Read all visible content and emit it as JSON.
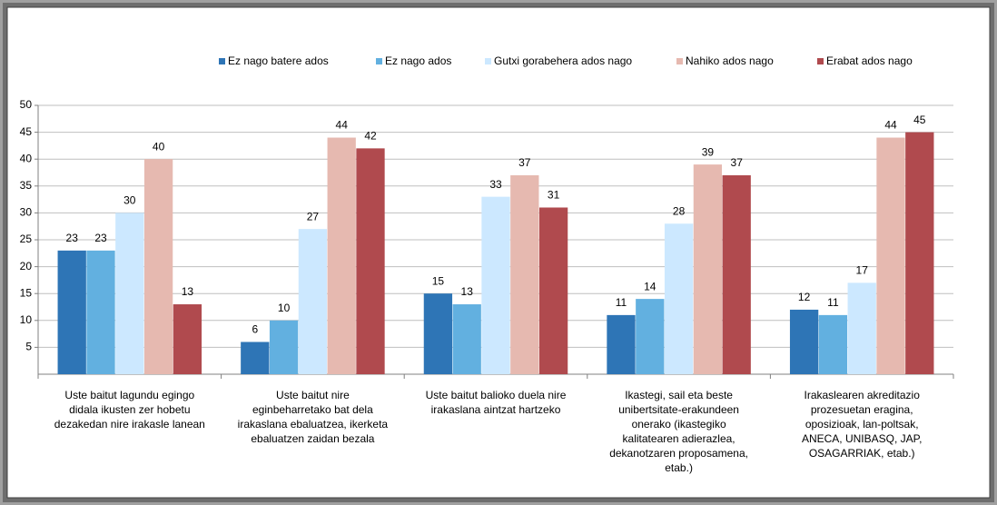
{
  "chart_data": {
    "type": "bar",
    "categories": [
      [
        "Uste baitut lagundu egingo",
        "didala ikusten zer hobetu",
        "dezakedan nire irakasle lanean"
      ],
      [
        "Uste baitut nire",
        "eginbeharretako bat dela",
        "irakaslana ebaluatzea, ikerketa",
        "ebaluatzen zaidan bezala"
      ],
      [
        "Uste baitut balioko duela nire",
        "irakaslana aintzat hartzeko"
      ],
      [
        "Ikastegi, sail eta beste",
        "unibertsitate-erakundeen",
        "onerako (ikastegiko",
        "kalitatearen adierazlea,",
        "dekanotzaren proposamena,",
        "etab.)"
      ],
      [
        "Irakaslearen akreditazio",
        "prozesuetan eragina,",
        "oposizioak, lan-poltsak,",
        "ANECA, UNIBASQ, JAP,",
        "OSAGARRIAK, etab.)"
      ]
    ],
    "series": [
      {
        "name": "Ez nago batere ados",
        "color": "#2e75b6",
        "values": [
          23,
          6,
          15,
          11,
          12
        ]
      },
      {
        "name": "Ez nago ados",
        "color": "#62b0e0",
        "values": [
          23,
          10,
          13,
          14,
          11
        ]
      },
      {
        "name": "Gutxi gorabehera ados nago",
        "color": "#cce8ff",
        "values": [
          30,
          27,
          33,
          28,
          17
        ]
      },
      {
        "name": "Nahiko ados nago",
        "color": "#e6b9b0",
        "values": [
          40,
          44,
          37,
          39,
          44
        ]
      },
      {
        "name": "Erabat ados nago",
        "color": "#b04a4e",
        "values": [
          13,
          42,
          31,
          37,
          45
        ]
      }
    ],
    "ylim": [
      0,
      50
    ],
    "yticks": [
      5,
      10,
      15,
      20,
      25,
      30,
      35,
      40,
      45,
      50
    ],
    "grid": true,
    "legend": "top"
  }
}
